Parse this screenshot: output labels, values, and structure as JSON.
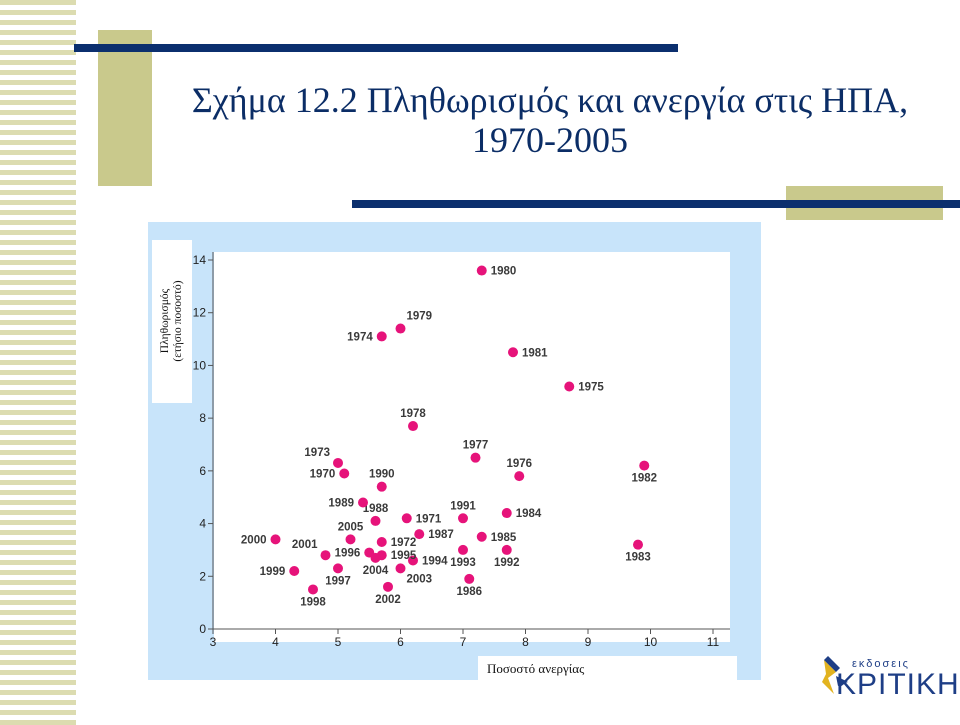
{
  "slide": {
    "title_line1": "Σχήμα 12.2 Πληθωρισμός και ανεργία στις ΗΠΑ,",
    "title_line2": "1970-2005",
    "colors": {
      "navy": "#0b2f6e",
      "olive": "#c9c98c",
      "panel": "#c8e4fa",
      "point": "#e6137a",
      "title": "#0b2d66"
    }
  },
  "logo": {
    "small_text": "εκδοσεις",
    "main_text": "ΚΡΙΤΙΚΗ"
  },
  "chart_data": {
    "type": "scatter",
    "xlabel": "Ποσοστό ανεργίας",
    "ylabel_line1": "Πληθωρισμός",
    "ylabel_line2": "(ετήσιο ποσοστό)",
    "xlim": [
      3,
      11
    ],
    "ylim": [
      0,
      14
    ],
    "xticks": [
      3,
      4,
      5,
      6,
      7,
      8,
      9,
      10,
      11
    ],
    "yticks": [
      0,
      2,
      4,
      6,
      8,
      10,
      12,
      14
    ],
    "grid": false,
    "points": [
      {
        "label": "1970",
        "x": 5.1,
        "y": 5.9,
        "pos": "left"
      },
      {
        "label": "1971",
        "x": 6.1,
        "y": 4.2,
        "pos": "right"
      },
      {
        "label": "1972",
        "x": 5.7,
        "y": 3.3,
        "pos": "right"
      },
      {
        "label": "1973",
        "x": 5.0,
        "y": 6.3,
        "pos": "above-left"
      },
      {
        "label": "1974",
        "x": 5.7,
        "y": 11.1,
        "pos": "left"
      },
      {
        "label": "1975",
        "x": 8.7,
        "y": 9.2,
        "pos": "right"
      },
      {
        "label": "1976",
        "x": 7.9,
        "y": 5.8,
        "pos": "above"
      },
      {
        "label": "1977",
        "x": 7.2,
        "y": 6.5,
        "pos": "above"
      },
      {
        "label": "1978",
        "x": 6.2,
        "y": 7.7,
        "pos": "above"
      },
      {
        "label": "1979",
        "x": 6.0,
        "y": 11.4,
        "pos": "above-right"
      },
      {
        "label": "1980",
        "x": 7.3,
        "y": 13.6,
        "pos": "right"
      },
      {
        "label": "1981",
        "x": 7.8,
        "y": 10.5,
        "pos": "right"
      },
      {
        "label": "1982",
        "x": 9.9,
        "y": 6.2,
        "pos": "below"
      },
      {
        "label": "1983",
        "x": 9.8,
        "y": 3.2,
        "pos": "below"
      },
      {
        "label": "1984",
        "x": 7.7,
        "y": 4.4,
        "pos": "right"
      },
      {
        "label": "1985",
        "x": 7.3,
        "y": 3.5,
        "pos": "right"
      },
      {
        "label": "1986",
        "x": 7.1,
        "y": 1.9,
        "pos": "below"
      },
      {
        "label": "1987",
        "x": 6.3,
        "y": 3.6,
        "pos": "right"
      },
      {
        "label": "1988",
        "x": 5.6,
        "y": 4.1,
        "pos": "above"
      },
      {
        "label": "1989",
        "x": 5.4,
        "y": 4.8,
        "pos": "left"
      },
      {
        "label": "1990",
        "x": 5.7,
        "y": 5.4,
        "pos": "above"
      },
      {
        "label": "1991",
        "x": 7.0,
        "y": 4.2,
        "pos": "above"
      },
      {
        "label": "1992",
        "x": 7.7,
        "y": 3.0,
        "pos": "below"
      },
      {
        "label": "1993",
        "x": 7.0,
        "y": 3.0,
        "pos": "below"
      },
      {
        "label": "1994",
        "x": 6.2,
        "y": 2.6,
        "pos": "right"
      },
      {
        "label": "1995",
        "x": 5.7,
        "y": 2.8,
        "pos": "right"
      },
      {
        "label": "1996",
        "x": 5.5,
        "y": 2.9,
        "pos": "left"
      },
      {
        "label": "1997",
        "x": 5.0,
        "y": 2.3,
        "pos": "below"
      },
      {
        "label": "1998",
        "x": 4.6,
        "y": 1.5,
        "pos": "below"
      },
      {
        "label": "1999",
        "x": 4.3,
        "y": 2.2,
        "pos": "left"
      },
      {
        "label": "2000",
        "x": 4.0,
        "y": 3.4,
        "pos": "left"
      },
      {
        "label": "2001",
        "x": 4.8,
        "y": 2.8,
        "pos": "above-left"
      },
      {
        "label": "2002",
        "x": 5.8,
        "y": 1.6,
        "pos": "below"
      },
      {
        "label": "2003",
        "x": 6.0,
        "y": 2.3,
        "pos": "below-right"
      },
      {
        "label": "2004",
        "x": 5.6,
        "y": 2.7,
        "pos": "below"
      },
      {
        "label": "2005",
        "x": 5.2,
        "y": 3.4,
        "pos": "above"
      }
    ]
  }
}
